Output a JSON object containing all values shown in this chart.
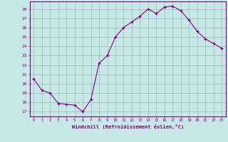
{
  "x": [
    0,
    1,
    2,
    3,
    4,
    5,
    6,
    7,
    8,
    9,
    10,
    11,
    12,
    13,
    14,
    15,
    16,
    17,
    18,
    19,
    20,
    21,
    22,
    23
  ],
  "y": [
    20.5,
    19.3,
    19.0,
    17.9,
    17.8,
    17.7,
    17.0,
    18.3,
    22.2,
    23.0,
    25.0,
    26.0,
    26.6,
    27.2,
    28.0,
    27.5,
    28.2,
    28.3,
    27.8,
    26.8,
    25.6,
    24.8,
    24.3,
    23.8
  ],
  "line_color": "#800080",
  "marker": "+",
  "marker_color": "#800080",
  "bg_color": "#c8e8e8",
  "grid_color": "#9ab8b8",
  "ylabel_ticks": [
    17,
    18,
    19,
    20,
    21,
    22,
    23,
    24,
    25,
    26,
    27,
    28
  ],
  "xlabel": "Windchill (Refroidissement éolien,°C)",
  "xlim": [
    -0.5,
    23.5
  ],
  "ylim": [
    16.5,
    28.8
  ],
  "xtick_labels": [
    "0",
    "1",
    "2",
    "3",
    "4",
    "5",
    "6",
    "7",
    "8",
    "9",
    "10",
    "11",
    "12",
    "13",
    "14",
    "15",
    "16",
    "17",
    "18",
    "19",
    "20",
    "21",
    "22",
    "23"
  ],
  "tick_color": "#800080",
  "label_color": "#800080",
  "axis_line_color": "#800080",
  "spine_color": "#800080"
}
